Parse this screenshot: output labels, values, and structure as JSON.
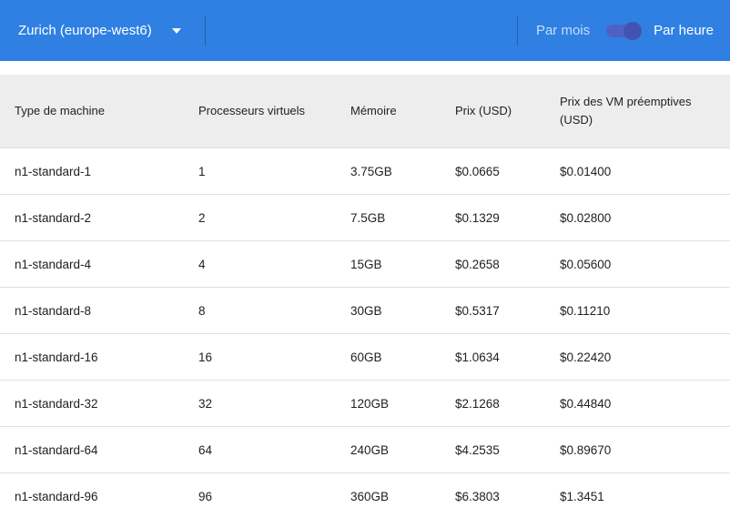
{
  "toolbar": {
    "region_selector": "Zurich (europe-west6)",
    "per_month_label": "Par mois",
    "per_hour_label": "Par heure",
    "toggle_selected": "Par heure"
  },
  "colors": {
    "toolbar_blue": "#2f80e2",
    "toggle_track": "#5061c4",
    "toggle_knob": "#4353b2",
    "table_header_bg": "#ededed",
    "row_border": "#e0e0e0",
    "text": "#212121"
  },
  "table": {
    "columns": [
      "Type de machine",
      "Processeurs virtuels",
      "Mémoire",
      "Prix (USD)",
      "Prix des VM préemptives (USD)"
    ],
    "rows": [
      [
        "n1-standard-1",
        "1",
        "3.75GB",
        "$0.0665",
        "$0.01400"
      ],
      [
        "n1-standard-2",
        "2",
        "7.5GB",
        "$0.1329",
        "$0.02800"
      ],
      [
        "n1-standard-4",
        "4",
        "15GB",
        "$0.2658",
        "$0.05600"
      ],
      [
        "n1-standard-8",
        "8",
        "30GB",
        "$0.5317",
        "$0.11210"
      ],
      [
        "n1-standard-16",
        "16",
        "60GB",
        "$1.0634",
        "$0.22420"
      ],
      [
        "n1-standard-32",
        "32",
        "120GB",
        "$2.1268",
        "$0.44840"
      ],
      [
        "n1-standard-64",
        "64",
        "240GB",
        "$4.2535",
        "$0.89670"
      ],
      [
        "n1-standard-96",
        "96",
        "360GB",
        "$6.3803",
        "$1.3451"
      ]
    ]
  }
}
